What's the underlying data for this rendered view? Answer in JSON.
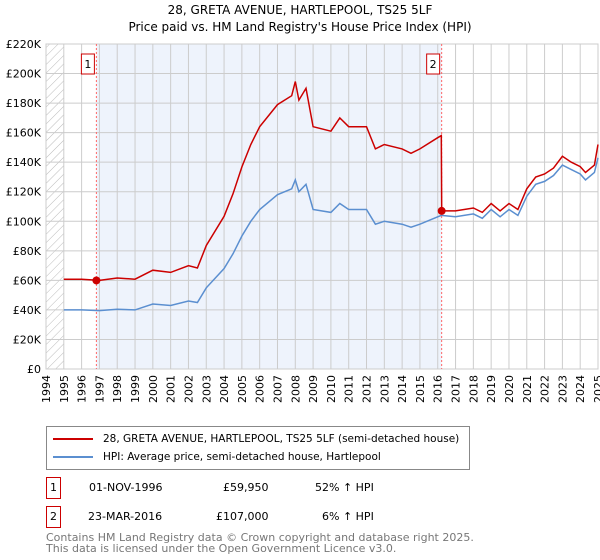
{
  "title": "28, GRETA AVENUE, HARTLEPOOL, TS25 5LF",
  "subtitle": "Price paid vs. HM Land Registry's House Price Index (HPI)",
  "colors": {
    "property": "#cc0000",
    "hpi": "#5b8fd0",
    "shade": "#eef3fc",
    "grid": "#cccccc"
  },
  "chart_data": {
    "type": "line",
    "title": "28, GRETA AVENUE, HARTLEPOOL, TS25 5LF - Price paid vs. HM Land Registry's House Price Index (HPI)",
    "xlim": [
      1994,
      2025
    ],
    "ylim": [
      0,
      220000
    ],
    "y_ticks": [
      "£0",
      "£20K",
      "£40K",
      "£60K",
      "£80K",
      "£100K",
      "£120K",
      "£140K",
      "£160K",
      "£180K",
      "£200K",
      "£220K"
    ],
    "x_ticks": [
      "1994",
      "1995",
      "1996",
      "1997",
      "1998",
      "1999",
      "2000",
      "2001",
      "2002",
      "2003",
      "2004",
      "2005",
      "2006",
      "2007",
      "2008",
      "2009",
      "2010",
      "2011",
      "2012",
      "2013",
      "2014",
      "2015",
      "2016",
      "2017",
      "2018",
      "2019",
      "2020",
      "2021",
      "2022",
      "2023",
      "2024",
      "2025"
    ],
    "grid": true,
    "series": [
      {
        "name": "28, GRETA AVENUE, HARTLEPOOL, TS25 5LF (semi-detached house)",
        "color": "#cc0000",
        "x": [
          1995,
          1996,
          1997,
          1998,
          1999,
          2000,
          2001,
          2002,
          2002.5,
          2003,
          2004,
          2004.5,
          2005,
          2005.5,
          2006,
          2007,
          2007.8,
          2008,
          2008.2,
          2008.6,
          2009,
          2010,
          2010.5,
          2011,
          2012,
          2012.5,
          2013,
          2014,
          2014.5,
          2015,
          2016,
          2016.2,
          2016.22,
          2017,
          2018,
          2018.5,
          2019,
          2019.5,
          2020,
          2020.5,
          2021,
          2021.5,
          2022,
          2022.5,
          2023,
          2023.5,
          2024,
          2024.3,
          2024.8,
          2025
        ],
        "y": [
          60800,
          60800,
          60000,
          61600,
          60800,
          66900,
          65400,
          69900,
          68400,
          83600,
          103400,
          118600,
          136800,
          152000,
          164000,
          179000,
          185000,
          194600,
          182000,
          190000,
          164000,
          161000,
          170000,
          164000,
          164000,
          149000,
          152000,
          149000,
          146000,
          149000,
          156600,
          158000,
          107000,
          107000,
          109000,
          106000,
          112000,
          107000,
          112000,
          108000,
          122000,
          130000,
          132000,
          136000,
          144000,
          140000,
          137000,
          133000,
          138000,
          152000
        ]
      },
      {
        "name": "HPI: Average price, semi-detached house, Hartlepool",
        "color": "#5b8fd0",
        "x": [
          1995,
          1996,
          1997,
          1998,
          1999,
          2000,
          2001,
          2002,
          2002.5,
          2003,
          2004,
          2004.5,
          2005,
          2005.5,
          2006,
          2007,
          2007.8,
          2008,
          2008.2,
          2008.6,
          2009,
          2010,
          2010.5,
          2011,
          2012,
          2012.5,
          2013,
          2014,
          2014.5,
          2015,
          2016,
          2016.2,
          2017,
          2018,
          2018.5,
          2019,
          2019.5,
          2020,
          2020.5,
          2021,
          2021.5,
          2022,
          2022.5,
          2023,
          2023.5,
          2024,
          2024.3,
          2024.8,
          2025
        ],
        "y": [
          40000,
          40000,
          39500,
          40500,
          40000,
          44000,
          43000,
          46000,
          45000,
          55000,
          68000,
          78000,
          90000,
          100000,
          108000,
          118000,
          122000,
          128000,
          120000,
          125000,
          108000,
          106000,
          112000,
          108000,
          108000,
          98000,
          100000,
          98000,
          96000,
          98000,
          103000,
          104000,
          103000,
          105000,
          102000,
          108000,
          103000,
          108000,
          104000,
          117000,
          125000,
          127000,
          131000,
          138000,
          135000,
          132000,
          128000,
          133000,
          143000
        ]
      }
    ],
    "sales": [
      {
        "label": "1",
        "x": 1996.83,
        "y": 59950
      },
      {
        "label": "2",
        "x": 2016.22,
        "y": 107000
      }
    ],
    "legend_placement": "bottom"
  },
  "legend": {
    "property": "28, GRETA AVENUE, HARTLEPOOL, TS25 5LF (semi-detached house)",
    "hpi": "HPI: Average price, semi-detached house, Hartlepool"
  },
  "transactions": [
    {
      "num": "1",
      "date": "01-NOV-1996",
      "price": "£59,950",
      "hpi": "52% ↑ HPI"
    },
    {
      "num": "2",
      "date": "23-MAR-2016",
      "price": "£107,000",
      "hpi": "6% ↑ HPI"
    }
  ],
  "footer": {
    "line1": "Contains HM Land Registry data © Crown copyright and database right 2025.",
    "line2": "This data is licensed under the Open Government Licence v3.0."
  }
}
